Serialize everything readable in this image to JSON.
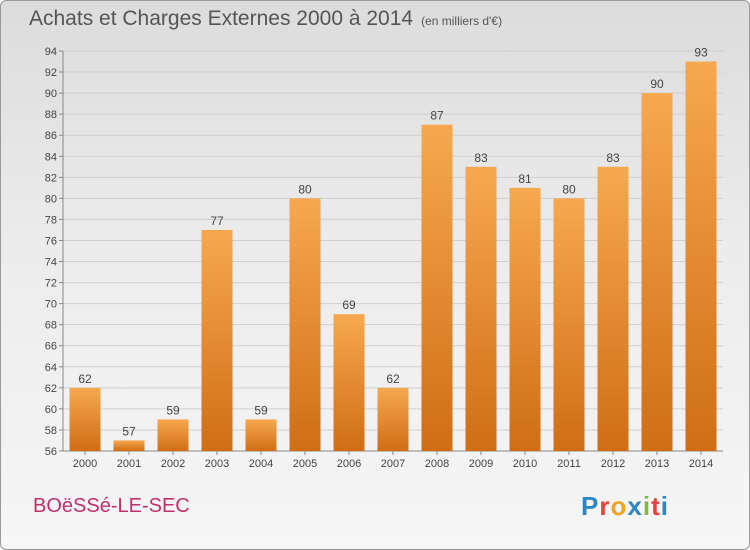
{
  "title": "Achats et Charges Externes 2000 à 2014",
  "subtitle": "(en milliers d'€)",
  "city": "BOëSSé-LE-SEC",
  "brand": {
    "letters": [
      "P",
      "r",
      "o",
      "x",
      "i",
      "t",
      "i"
    ],
    "colors": [
      "#2e86c9",
      "#e8403a",
      "#f4a321",
      "#2e86c9",
      "#84b73d",
      "#e8403a",
      "#2e86c9"
    ]
  },
  "colors": {
    "bar_top": "#f7a84e",
    "bar_bottom": "#d06e14",
    "grid": "#cfcfcf",
    "text": "#444444"
  },
  "chart_data": {
    "type": "bar",
    "title": "Achats et Charges Externes 2000 à 2014",
    "subtitle": "(en milliers d'€)",
    "categories": [
      "2000",
      "2001",
      "2002",
      "2003",
      "2004",
      "2005",
      "2006",
      "2007",
      "2008",
      "2009",
      "2010",
      "2011",
      "2012",
      "2013",
      "2014"
    ],
    "values": [
      62,
      57,
      59,
      77,
      59,
      80,
      69,
      62,
      87,
      83,
      81,
      80,
      83,
      90,
      93
    ],
    "ylim": [
      56,
      94
    ],
    "yticks": [
      56,
      58,
      60,
      62,
      64,
      66,
      68,
      70,
      72,
      74,
      76,
      78,
      80,
      82,
      84,
      86,
      88,
      90,
      92,
      94
    ],
    "grid": true,
    "data_labels": true
  }
}
